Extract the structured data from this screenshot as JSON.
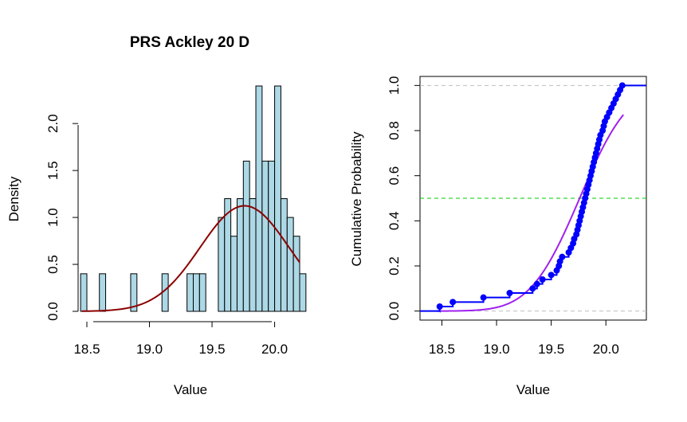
{
  "colors": {
    "hist_fill": "#add8e6",
    "density_curve": "#8b0000",
    "ecdf": "#0000ff",
    "normal_cdf": "#a020f0",
    "median_line": "#00cc00",
    "ref_lines": "#bebebe"
  },
  "chart_data": [
    {
      "type": "bar",
      "title": "PRS Ackley 20 D",
      "xlabel": "Value",
      "ylabel": "Density",
      "xlim": [
        18.43,
        20.2
      ],
      "ylim": [
        0,
        2.4
      ],
      "xticks": [
        "18.5",
        "19.0",
        "19.5",
        "20.0"
      ],
      "yticks": [
        "0.0",
        "0.5",
        "1.0",
        "1.5",
        "2.0"
      ],
      "bin_width": 0.05,
      "bins": [
        {
          "start": 18.45,
          "value": 0.4
        },
        {
          "start": 18.6,
          "value": 0.4
        },
        {
          "start": 18.85,
          "value": 0.4
        },
        {
          "start": 19.1,
          "value": 0.4
        },
        {
          "start": 19.3,
          "value": 0.4
        },
        {
          "start": 19.35,
          "value": 0.4
        },
        {
          "start": 19.4,
          "value": 0.4
        },
        {
          "start": 19.55,
          "value": 1.0
        },
        {
          "start": 19.6,
          "value": 1.2
        },
        {
          "start": 19.65,
          "value": 0.8
        },
        {
          "start": 19.7,
          "value": 1.2
        },
        {
          "start": 19.75,
          "value": 1.6
        },
        {
          "start": 19.8,
          "value": 1.2
        },
        {
          "start": 19.85,
          "value": 2.4
        },
        {
          "start": 19.9,
          "value": 1.6
        },
        {
          "start": 19.95,
          "value": 1.6
        },
        {
          "start": 20.0,
          "value": 2.4
        },
        {
          "start": 20.05,
          "value": 1.2
        },
        {
          "start": 20.1,
          "value": 1.0
        },
        {
          "start": 20.15,
          "value": 0.8
        },
        {
          "start": 20.2,
          "value": 0.4
        }
      ],
      "density_curve": {
        "mean": 19.76,
        "sd": 0.355
      }
    },
    {
      "type": "line",
      "xlabel": "Value",
      "ylabel": "Cumulative Probability",
      "xlim": [
        18.3,
        20.37
      ],
      "ylim": [
        -0.04,
        1.04
      ],
      "xticks": [
        "18.5",
        "19.0",
        "19.5",
        "20.0"
      ],
      "yticks": [
        "0.0",
        "0.2",
        "0.4",
        "0.6",
        "0.8",
        "1.0"
      ],
      "reference_lines": [
        0,
        1
      ],
      "median_line": 0.5,
      "normal_cdf": {
        "mean": 19.76,
        "sd": 0.355,
        "x_range": [
          18.45,
          20.16
        ]
      },
      "ecdf_points": [
        [
          18.48,
          0.02
        ],
        [
          18.6,
          0.04
        ],
        [
          18.88,
          0.06
        ],
        [
          19.12,
          0.08
        ],
        [
          19.33,
          0.1
        ],
        [
          19.37,
          0.12
        ],
        [
          19.42,
          0.14
        ],
        [
          19.5,
          0.16
        ],
        [
          19.55,
          0.18
        ],
        [
          19.57,
          0.2
        ],
        [
          19.58,
          0.22
        ],
        [
          19.6,
          0.24
        ],
        [
          19.66,
          0.26
        ],
        [
          19.68,
          0.28
        ],
        [
          19.7,
          0.3
        ],
        [
          19.71,
          0.32
        ],
        [
          19.73,
          0.34
        ],
        [
          19.74,
          0.36
        ],
        [
          19.75,
          0.38
        ],
        [
          19.76,
          0.4
        ],
        [
          19.77,
          0.42
        ],
        [
          19.78,
          0.44
        ],
        [
          19.79,
          0.46
        ],
        [
          19.8,
          0.48
        ],
        [
          19.81,
          0.5
        ],
        [
          19.82,
          0.52
        ],
        [
          19.83,
          0.54
        ],
        [
          19.84,
          0.56
        ],
        [
          19.85,
          0.58
        ],
        [
          19.86,
          0.6
        ],
        [
          19.87,
          0.62
        ],
        [
          19.88,
          0.64
        ],
        [
          19.89,
          0.66
        ],
        [
          19.9,
          0.68
        ],
        [
          19.91,
          0.7
        ],
        [
          19.92,
          0.72
        ],
        [
          19.93,
          0.74
        ],
        [
          19.94,
          0.76
        ],
        [
          19.95,
          0.78
        ],
        [
          19.97,
          0.8
        ],
        [
          19.98,
          0.82
        ],
        [
          19.99,
          0.84
        ],
        [
          20.01,
          0.86
        ],
        [
          20.03,
          0.88
        ],
        [
          20.05,
          0.9
        ],
        [
          20.07,
          0.92
        ],
        [
          20.09,
          0.94
        ],
        [
          20.11,
          0.96
        ],
        [
          20.13,
          0.98
        ],
        [
          20.15,
          1.0
        ]
      ]
    }
  ]
}
